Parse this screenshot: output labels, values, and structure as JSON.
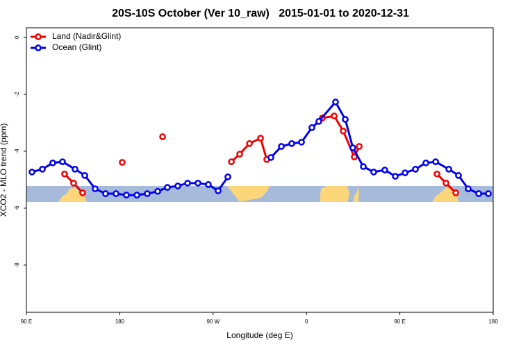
{
  "chart_data": {
    "type": "line",
    "title": "20S-10S October (Ver 10_raw)   2015-01-01 to 2020-12-31",
    "xlabel": "Longitude (deg E)",
    "ylabel": "XCO2 - MLO trend (ppm)",
    "xlim": [
      90,
      540
    ],
    "ylim": [
      -9.66,
      0.34
    ],
    "xticks": [
      {
        "value": 90,
        "label": "90 E"
      },
      {
        "value": 180,
        "label": "180"
      },
      {
        "value": 270,
        "label": "90 W"
      },
      {
        "value": 360,
        "label": "0"
      },
      {
        "value": 450,
        "label": "90 E"
      },
      {
        "value": 540,
        "label": "180"
      }
    ],
    "yticks": [
      0,
      -2,
      -4,
      -6,
      -8
    ],
    "legend": "top-left",
    "series": [
      {
        "name": "Land (Nadir&Glint)",
        "color": "#ee0000",
        "x": [
          126.8,
          135.5,
          144.2,
          160,
          182.4,
          200,
          221.3,
          260,
          287.6,
          295.6,
          305,
          315.7,
          321.7,
          350,
          375.3,
          386.7,
          395.4,
          406.1,
          410.8,
          450,
          485.8,
          494.5,
          503.9
        ],
        "values": [
          -4.8,
          -5.12,
          -5.46,
          null,
          -4.39,
          null,
          -3.49,
          null,
          -4.37,
          -4.1,
          -3.73,
          -3.54,
          -4.29,
          null,
          -2.83,
          -2.76,
          -3.29,
          -4.2,
          -3.83,
          null,
          -4.8,
          -5.12,
          -5.46
        ]
      },
      {
        "name": "Ocean (Glint)",
        "color": "#0000ee",
        "x": [
          95.4,
          105.4,
          115.4,
          124.8,
          136.9,
          146.3,
          156.3,
          166.3,
          176.4,
          186.4,
          196.5,
          206.5,
          216.6,
          225.9,
          236,
          245.4,
          255.4,
          265.4,
          274.8,
          284.2,
          305,
          325.7,
          335.8,
          345.8,
          355.2,
          365.2,
          371.9,
          388,
          397.4,
          404.7,
          414.8,
          424.8,
          435.5,
          445.6,
          455,
          465,
          475.1,
          484.5,
          497.2,
          506.5,
          515.9,
          526,
          535.3
        ],
        "values": [
          -4.73,
          -4.63,
          -4.41,
          -4.37,
          -4.63,
          -4.85,
          -5.32,
          -5.49,
          -5.49,
          -5.54,
          -5.54,
          -5.49,
          -5.41,
          -5.27,
          -5.22,
          -5.12,
          -5.12,
          -5.17,
          -5.39,
          -4.9,
          null,
          -4.22,
          -3.83,
          -3.73,
          -3.68,
          -3.17,
          -2.95,
          -2.27,
          -2.88,
          -3.88,
          -4.54,
          -4.73,
          -4.66,
          -4.88,
          -4.76,
          -4.63,
          -4.41,
          -4.37,
          -4.63,
          -4.85,
          -5.32,
          -5.49,
          -5.49
        ]
      }
    ]
  }
}
